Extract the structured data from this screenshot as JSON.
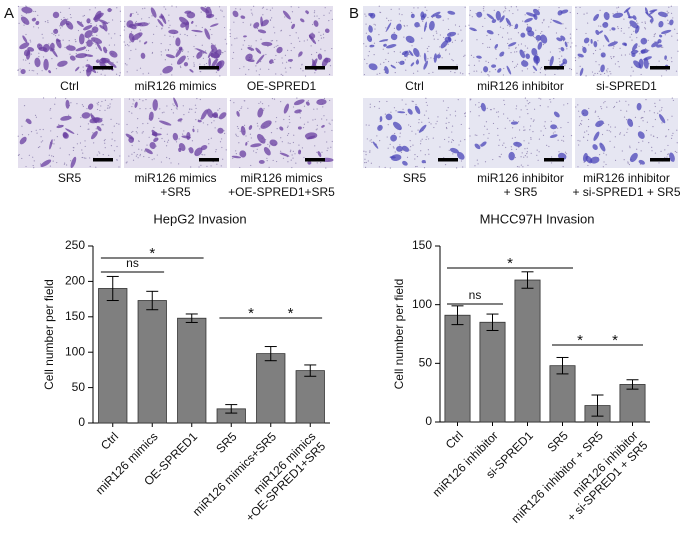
{
  "panels": [
    {
      "label": "A",
      "images": [
        {
          "caption": "Ctrl"
        },
        {
          "caption": "miR126 mimics"
        },
        {
          "caption": "OE-SPRED1"
        },
        {
          "caption": "SR5"
        },
        {
          "caption": "miR126 mimics\n+SR5"
        },
        {
          "caption": "miR126 mimics\n+OE-SPRED1+SR5"
        }
      ]
    },
    {
      "label": "B",
      "images": [
        {
          "caption": "Ctrl"
        },
        {
          "caption": "miR126 inhibitor"
        },
        {
          "caption": "si-SPRED1"
        },
        {
          "caption": "SR5"
        },
        {
          "caption": "miR126 inhibitor\n+ SR5"
        },
        {
          "caption": "miR126 inhibitor\n+ si-SPRED1 + SR5"
        }
      ]
    }
  ],
  "chart_data": [
    {
      "type": "bar",
      "title": "HepG2 Invasion",
      "ylabel": "Cell number per field",
      "categories": [
        "Ctrl",
        "miR126 mimics",
        "OE-SPRED1",
        "SR5",
        "miR126 mimics+SR5",
        "miR126 mimics\n+OE-SPRED1+SR5"
      ],
      "values": [
        190,
        173,
        148,
        20,
        98,
        74
      ],
      "errors": [
        17,
        13,
        6,
        6,
        10,
        8
      ],
      "color": "#7f7f7f",
      "ylim": [
        0,
        250
      ],
      "yticks": [
        0,
        50,
        100,
        150,
        200,
        250
      ],
      "grid": false,
      "annotations": [
        "*",
        "ns",
        "*",
        "*"
      ]
    },
    {
      "type": "bar",
      "title": "MHCC97H Invasion",
      "ylabel": "Cell number per field",
      "categories": [
        "Ctrl",
        "miR126 inhibitor",
        "si-SPRED1",
        "SR5",
        "miR126 inhibitor + SR5",
        "miR126 inhibitor\n+ si-SPRED1 + SR5"
      ],
      "values": [
        91,
        85,
        121,
        48,
        14,
        32
      ],
      "errors": [
        8,
        7,
        7,
        7,
        9,
        4
      ],
      "color": "#7f7f7f",
      "ylim": [
        0,
        150
      ],
      "yticks": [
        0,
        50,
        100,
        150
      ],
      "grid": false,
      "annotations": [
        "*",
        "ns",
        "*",
        "*"
      ]
    }
  ]
}
